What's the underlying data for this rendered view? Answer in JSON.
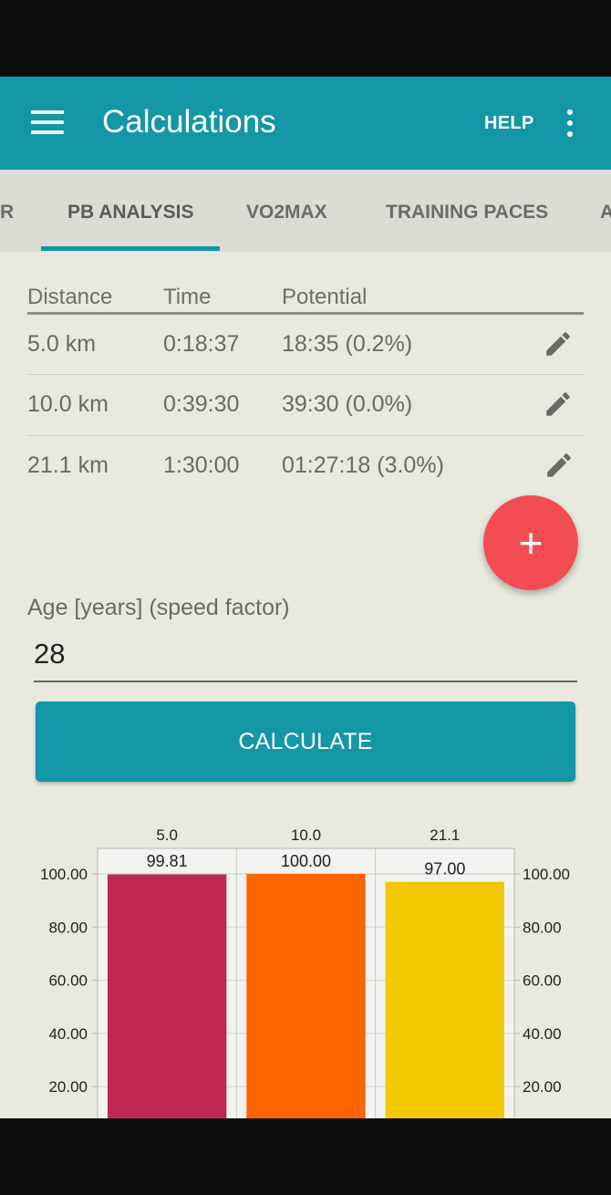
{
  "app_bar": {
    "title": "Calculations",
    "help_label": "HELP"
  },
  "tabs": [
    {
      "label": "R"
    },
    {
      "label": "PB ANALYSIS",
      "active": true
    },
    {
      "label": "VO2MAX"
    },
    {
      "label": "TRAINING PACES"
    },
    {
      "label": "A"
    }
  ],
  "table": {
    "headers": [
      "Distance",
      "Time",
      "Potential"
    ],
    "rows": [
      {
        "distance": "5.0 km",
        "time": "0:18:37",
        "potential": "18:35 (0.2%)"
      },
      {
        "distance": "10.0 km",
        "time": "0:39:30",
        "potential": "39:30 (0.0%)"
      },
      {
        "distance": "21.1 km",
        "time": "1:30:00",
        "potential": "01:27:18 (3.0%)"
      }
    ]
  },
  "fab": {
    "icon": "plus-icon"
  },
  "age": {
    "label": "Age [years] (speed factor)",
    "value": "28"
  },
  "calculate_label": "CALCULATE",
  "colors": {
    "primary": "#1397a6",
    "fab": "#f24d52",
    "background": "#e9e9df"
  },
  "chart_data": {
    "type": "bar",
    "categories": [
      "5.0",
      "10.0",
      "21.1"
    ],
    "values": [
      99.81,
      100.0,
      97.0
    ],
    "value_labels": [
      "99.81",
      "100.00",
      "97.00"
    ],
    "colors": [
      "#c02854",
      "#fe6500",
      "#f3c800"
    ],
    "y_ticks": [
      "100.00",
      "80.00",
      "60.00",
      "40.00",
      "20.00"
    ],
    "ylim": [
      0,
      100
    ],
    "grid": true,
    "title": "",
    "xlabel": "",
    "ylabel": ""
  }
}
